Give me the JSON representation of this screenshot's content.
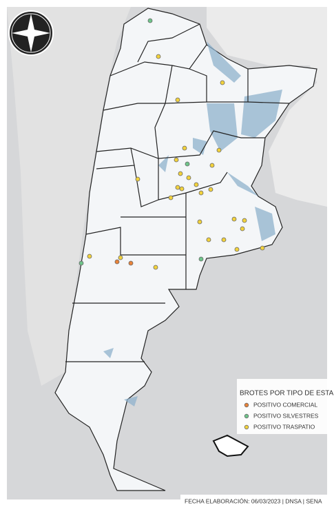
{
  "legend": {
    "title": "BROTES POR TIPO DE ESTAB",
    "items": [
      {
        "label": "POSITIVO COMERCIAL",
        "color": "#e8833a"
      },
      {
        "label": "POSITIVO SILVESTRES",
        "color": "#6fc48a"
      },
      {
        "label": "POSITIVO TRASPATIO",
        "color": "#f2d23c"
      }
    ]
  },
  "footer": "FECHA ELABORACIÓN: 06/03/2023 | DNSA | SENA"
}
